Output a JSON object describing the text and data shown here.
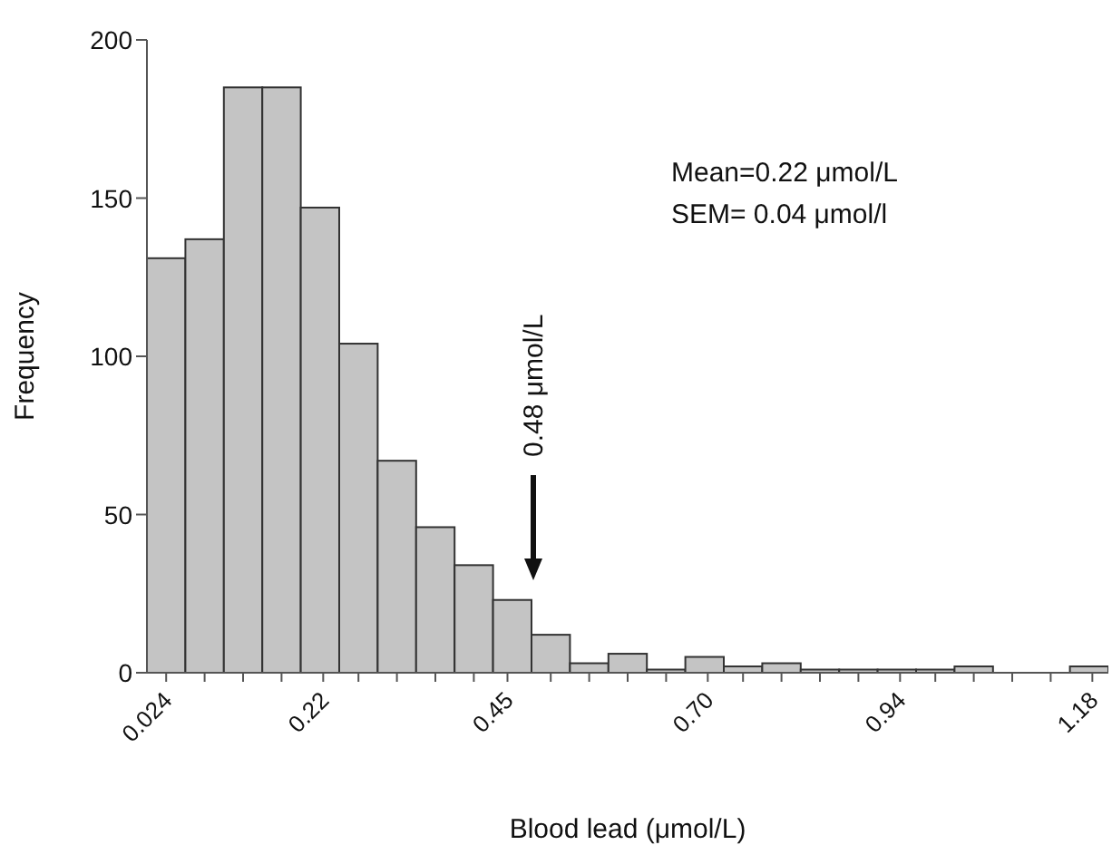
{
  "chart_data": {
    "type": "histogram",
    "xlabel": "Blood lead (μmol/L)",
    "ylabel": "Frequency",
    "bins": [
      0,
      0.048,
      0.096,
      0.144,
      0.192,
      0.24,
      0.288,
      0.336,
      0.384,
      0.432,
      0.48,
      0.528,
      0.576,
      0.624,
      0.672,
      0.72,
      0.768,
      0.816,
      0.864,
      0.912,
      0.96,
      1.008,
      1.056,
      1.104,
      1.152,
      1.2
    ],
    "values": [
      131,
      137,
      185,
      185,
      147,
      104,
      67,
      46,
      34,
      23,
      12,
      3,
      6,
      1,
      5,
      2,
      3,
      1,
      1,
      1,
      1,
      2,
      0,
      0,
      2
    ],
    "color": "#c4c4c4",
    "xlim": [
      0,
      1.2
    ],
    "xticks": [
      0.024,
      {
        "value": 0.072,
        "label": null
      },
      {
        "value": 0.12,
        "label": null
      },
      {
        "value": 0.168,
        "label": null
      },
      0.22,
      {
        "value": 0.264,
        "label": null
      },
      {
        "value": 0.312,
        "label": null
      },
      {
        "value": 0.36,
        "label": null
      },
      {
        "value": 0.408,
        "label": null
      },
      0.45,
      {
        "value": 0.504,
        "label": null
      },
      {
        "value": 0.552,
        "label": null
      },
      {
        "value": 0.6,
        "label": null
      },
      {
        "value": 0.648,
        "label": null
      },
      {
        "value": 0.7,
        "label": "0.70"
      },
      {
        "value": 0.744,
        "label": null
      },
      {
        "value": 0.792,
        "label": null
      },
      {
        "value": 0.84,
        "label": null
      },
      {
        "value": 0.888,
        "label": null
      },
      0.94,
      {
        "value": 0.984,
        "label": null
      },
      {
        "value": 1.032,
        "label": null
      },
      {
        "value": 1.08,
        "label": null
      },
      {
        "value": 1.128,
        "label": null
      },
      1.18
    ],
    "ylim": [
      0,
      200
    ],
    "yticks": [
      0,
      50,
      100,
      150,
      200
    ],
    "annotations": [
      "0.48 μmol/L",
      "Mean=0.22 μmol/L",
      "SEM= 0.04 μmol/l"
    ]
  }
}
